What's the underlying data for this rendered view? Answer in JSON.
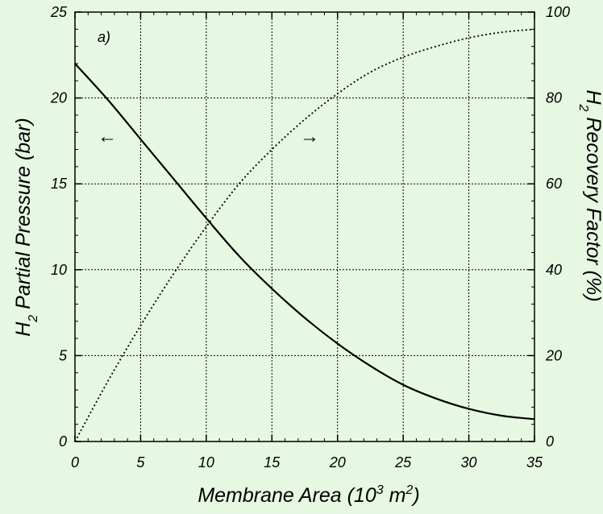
{
  "chart_data": {
    "type": "line",
    "panel_label": "a)",
    "xlabel": {
      "main": "Membrane Area (10",
      "sup1": "3",
      "mid": " m",
      "sup2": "2",
      "end": ")"
    },
    "ylabel_left": {
      "pre": "H",
      "sub": "2",
      "post": " Partial Pressure (bar)"
    },
    "ylabel_right": {
      "pre": "H",
      "sub": "2",
      "post": " Recovery Factor (%)"
    },
    "xlim": [
      0,
      35
    ],
    "ylim_left": [
      0,
      25
    ],
    "ylim_right": [
      0,
      100
    ],
    "x_ticks": [
      "0",
      "5",
      "10",
      "15",
      "20",
      "25",
      "30",
      "35"
    ],
    "y_left_ticks": [
      "0",
      "5",
      "10",
      "15",
      "20",
      "25"
    ],
    "y_right_ticks": [
      "0",
      "20",
      "40",
      "60",
      "80",
      "100"
    ],
    "grid": true,
    "arrows": {
      "left": "←",
      "right": "→"
    },
    "series": [
      {
        "axis": "left",
        "style": "solid",
        "x": [
          0,
          2.5,
          5,
          7.5,
          10,
          12.5,
          15,
          17.5,
          20,
          22.5,
          25,
          27.5,
          30,
          32.5,
          35
        ],
        "y": [
          22.0,
          19.9,
          17.6,
          15.3,
          13.0,
          10.8,
          8.9,
          7.2,
          5.7,
          4.4,
          3.3,
          2.5,
          1.9,
          1.5,
          1.3
        ]
      },
      {
        "axis": "right",
        "style": "dotted",
        "x": [
          0,
          2.5,
          5,
          7.5,
          10,
          12.5,
          15,
          17.5,
          20,
          22.5,
          25,
          27.5,
          30,
          32.5,
          35
        ],
        "y": [
          0,
          14,
          27,
          39,
          50,
          60,
          68,
          75,
          81,
          86,
          89.5,
          92,
          94,
          95.3,
          96
        ]
      }
    ]
  }
}
